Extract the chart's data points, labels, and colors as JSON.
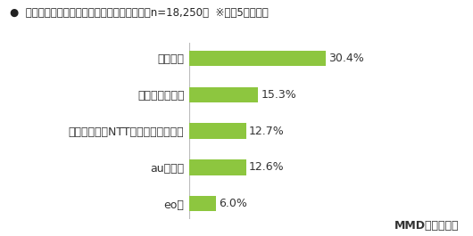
{
  "title": "●  利用しているインターネット回線：光回線（n=18,250）  ※上位5サービス",
  "categories": [
    "ドコモ光",
    "ソフトバンク光",
    "フレッツ光（NTT東日本、西日本）",
    "auひかり",
    "eo光"
  ],
  "values": [
    30.4,
    15.3,
    12.7,
    12.6,
    6.0
  ],
  "labels": [
    "30.4%",
    "15.3%",
    "12.7%",
    "12.6%",
    "6.0%"
  ],
  "bar_color": "#8DC63F",
  "background_color": "#ffffff",
  "xlim": [
    0,
    42
  ],
  "bar_height": 0.42,
  "source_text": "MMD研究所調べ",
  "title_fontsize": 8.5,
  "label_fontsize": 9.0,
  "category_fontsize": 9.0,
  "source_fontsize": 9.0
}
